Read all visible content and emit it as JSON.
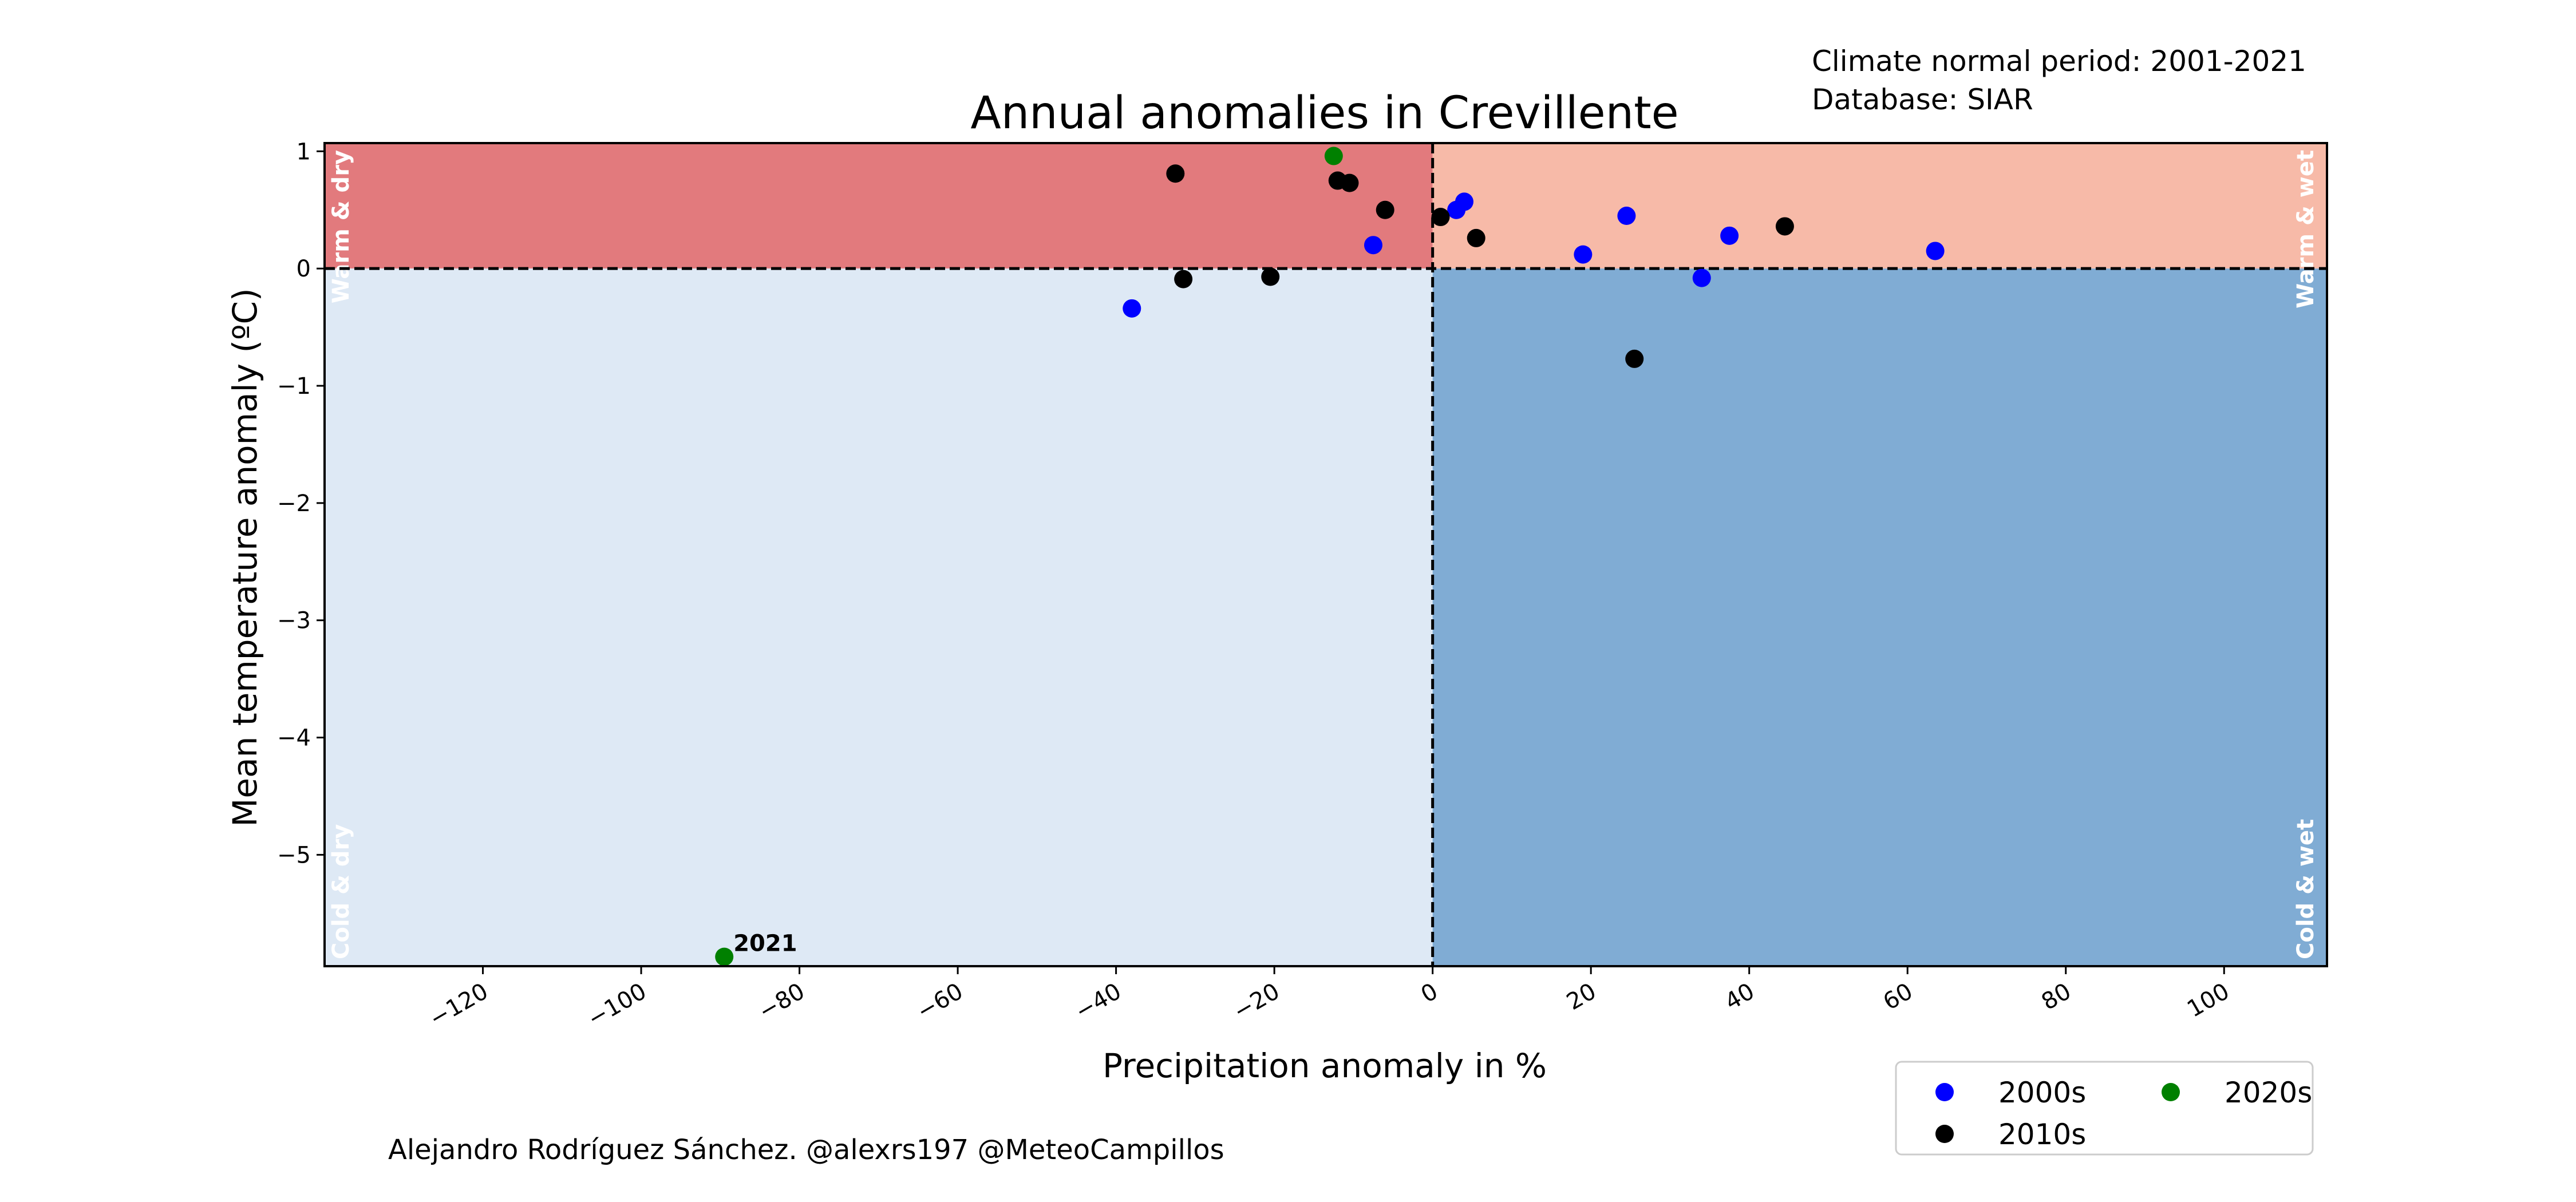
{
  "chart_data": {
    "type": "scatter",
    "title": "Annual anomalies in Crevillente",
    "xlabel": "Precipitation anomaly in %",
    "ylabel": "Mean temperature anomaly (ºC)",
    "xlim": [
      -140,
      113
    ],
    "ylim": [
      -5.95,
      1.07
    ],
    "xticks": [
      -120,
      -100,
      -80,
      -60,
      -40,
      -20,
      0,
      20,
      40,
      60,
      80,
      100
    ],
    "yticks": [
      1,
      0,
      -1,
      -2,
      -3,
      -4,
      -5
    ],
    "grid": false,
    "legend_position": "bottom-right, outside plot",
    "quadrants": [
      {
        "label": "Warm & dry",
        "color": "#e27a7d",
        "x_range": [
          -140,
          0
        ],
        "y_range": [
          0,
          1.07
        ]
      },
      {
        "label": "Warm & wet",
        "color": "#f7baa8",
        "x_range": [
          0,
          113
        ],
        "y_range": [
          0,
          1.07
        ]
      },
      {
        "label": "Cold & dry",
        "color": "#dee9f5",
        "x_range": [
          -140,
          0
        ],
        "y_range": [
          -5.95,
          0
        ]
      },
      {
        "label": "Cold & wet",
        "color": "#80acd4",
        "x_range": [
          0,
          113
        ],
        "y_range": [
          -5.95,
          0
        ]
      }
    ],
    "series": [
      {
        "name": "2000s",
        "color": "#0000ff",
        "points": [
          [
            -38,
            -0.34
          ],
          [
            -7.5,
            0.2
          ],
          [
            3,
            0.5
          ],
          [
            4,
            0.57
          ],
          [
            19,
            0.12
          ],
          [
            24.5,
            0.45
          ],
          [
            34,
            -0.08
          ],
          [
            37.5,
            0.28
          ],
          [
            63.5,
            0.15
          ]
        ]
      },
      {
        "name": "2010s",
        "color": "#000000",
        "points": [
          [
            -32.5,
            0.81
          ],
          [
            -31.5,
            -0.09
          ],
          [
            -20.5,
            -0.07
          ],
          [
            -12,
            0.75
          ],
          [
            -10.5,
            0.73
          ],
          [
            -6,
            0.5
          ],
          [
            1,
            0.44
          ],
          [
            5.5,
            0.26
          ],
          [
            25.5,
            -0.77
          ],
          [
            44.5,
            0.36
          ]
        ]
      },
      {
        "name": "2020s",
        "color": "#008000",
        "points": [
          [
            -12.5,
            0.96
          ],
          [
            -89.5,
            -5.87
          ]
        ]
      }
    ],
    "annotations": [
      {
        "text": "2021",
        "x": -89.5,
        "y": -5.87
      }
    ]
  },
  "header": {
    "normal_period": "Climate normal period: 2001-2021",
    "database": "Database: SIAR"
  },
  "credit": "Alejandro Rodríguez Sánchez. @alexrs197 @MeteoCampillos"
}
